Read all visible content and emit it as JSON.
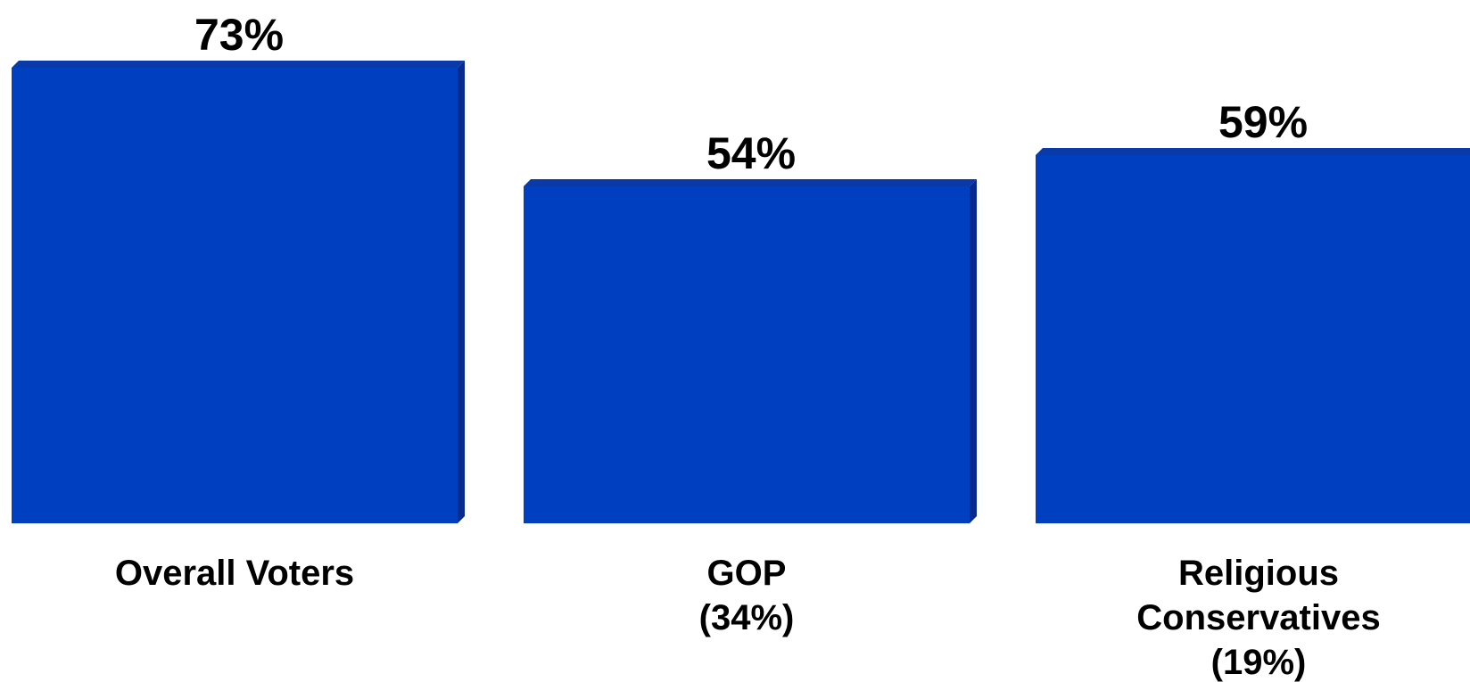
{
  "chart_data": {
    "type": "bar",
    "categories": [
      [
        "Overall Voters"
      ],
      [
        "GOP",
        "(34%)"
      ],
      [
        "Religious",
        "Conservatives",
        "(19%)"
      ]
    ],
    "values": [
      73,
      54,
      59
    ],
    "value_labels": [
      "73%",
      "54%",
      "59%"
    ],
    "ylim": [
      0,
      100
    ],
    "grid": false,
    "legend": "none",
    "colors": {
      "bar_front": "#003FBF",
      "bar_top": "#0A3AA8",
      "bar_side": "#062B8C",
      "bar_edge": "#002A8F"
    }
  }
}
